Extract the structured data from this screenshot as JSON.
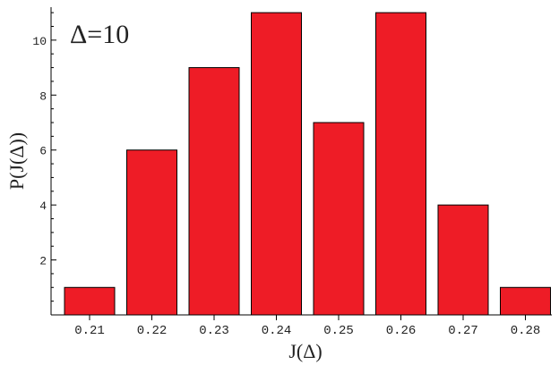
{
  "chart_data": {
    "type": "bar",
    "annotation": "Δ=10",
    "xlabel": "J(Δ)",
    "ylabel": "P(J(Δ))",
    "categories": [
      "0.21",
      "0.22",
      "0.23",
      "0.24",
      "0.25",
      "0.26",
      "0.27",
      "0.28"
    ],
    "values": [
      1,
      6,
      9,
      11,
      7,
      11,
      4,
      1
    ],
    "ylim": [
      0,
      11.2
    ],
    "yticks": [
      "2",
      "4",
      "6",
      "8",
      "10"
    ],
    "bar_color": "#ee1c26",
    "grid": false
  }
}
